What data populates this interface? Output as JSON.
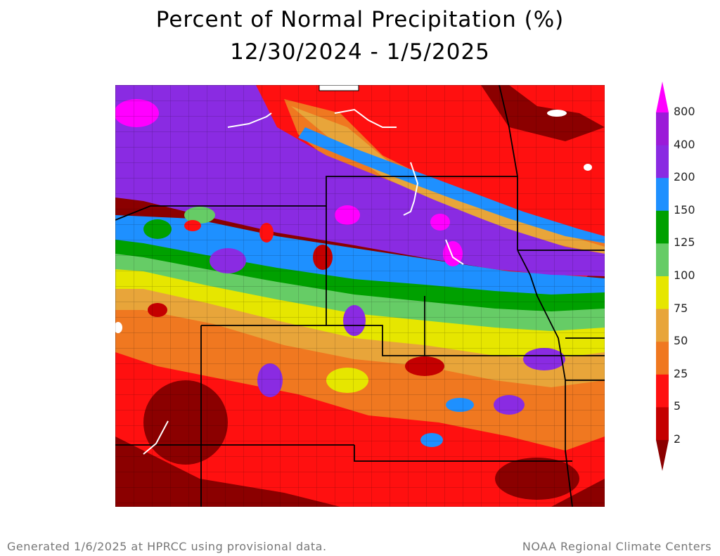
{
  "title": {
    "line1": "Percent of Normal Precipitation (%)",
    "line2": "12/30/2024 - 1/5/2025"
  },
  "legend": {
    "labels": [
      "800",
      "400",
      "200",
      "150",
      "125",
      "100",
      "75",
      "50",
      "25",
      "5",
      "2"
    ],
    "colors": [
      "#ff00ff",
      "#9b1bd8",
      "#8a2be2",
      "#1e90ff",
      "#00a000",
      "#66cc66",
      "#e6e600",
      "#e8a53a",
      "#f07820",
      "#ff1010",
      "#c40000",
      "#8b0000"
    ]
  },
  "map": {
    "background_color": "#8b0000",
    "boundary_color": "#000000",
    "water_color": "#ffffff"
  },
  "footer": {
    "left": "Generated 1/6/2025 at HPRCC using provisional data.",
    "right": "NOAA Regional Climate Centers"
  }
}
